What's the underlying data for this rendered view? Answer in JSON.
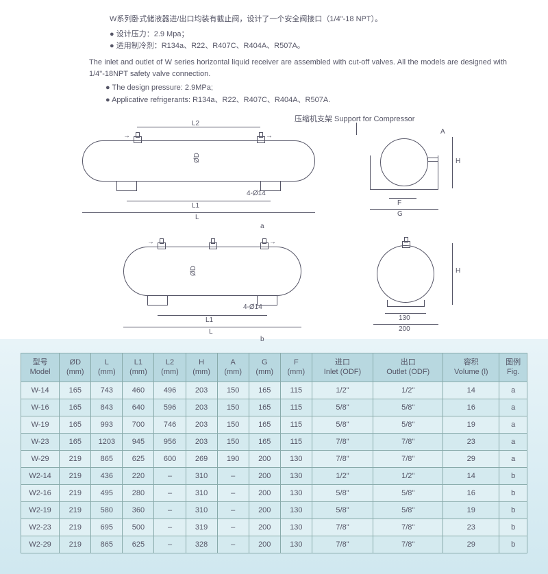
{
  "desc_cn": "W系列卧式储液器进/出口均装有截止阀，设计了一个安全阀接口（1/4\"-18 NPT）。",
  "bullets_cn": [
    "设计压力：2.9 Mpa；",
    "适用制冷剂：R134a、R22、R407C、R404A、R507A。"
  ],
  "desc_en": "The inlet and outlet of W series horizontal liquid receiver are assembled with cut-off valves. All the models are designed with 1/4\"-18NPT safety valve connection.",
  "bullets_en": [
    "The design pressure: 2.9MPa;",
    "Applicative refrigerants: R134a、R22、R407C、R404A、R507A."
  ],
  "diagram": {
    "support_label": "压缩机支架 Support for Compressor",
    "dims": {
      "L": "L",
      "L1": "L1",
      "L2": "L2",
      "OD": "ØD",
      "H": "H",
      "A": "A",
      "G": "G",
      "F": "F",
      "holes": "4-Ø14",
      "a": "a",
      "b": "b",
      "d130": "130",
      "d200": "200"
    },
    "colors": {
      "line": "#556677",
      "bg": "#ffffff"
    }
  },
  "table": {
    "columns": [
      {
        "cn": "型号",
        "en": "Model"
      },
      {
        "cn": "ØD",
        "en": "(mm)"
      },
      {
        "cn": "L",
        "en": "(mm)"
      },
      {
        "cn": "L1",
        "en": "(mm)"
      },
      {
        "cn": "L2",
        "en": "(mm)"
      },
      {
        "cn": "H",
        "en": "(mm)"
      },
      {
        "cn": "A",
        "en": "(mm)"
      },
      {
        "cn": "G",
        "en": "(mm)"
      },
      {
        "cn": "F",
        "en": "(mm)"
      },
      {
        "cn": "进口",
        "en": "Inlet (ODF)"
      },
      {
        "cn": "出口",
        "en": "Outlet (ODF)"
      },
      {
        "cn": "容积",
        "en": "Volume (l)"
      },
      {
        "cn": "图例",
        "en": "Fig."
      }
    ],
    "rows": [
      [
        "W-14",
        "165",
        "743",
        "460",
        "496",
        "203",
        "150",
        "165",
        "115",
        "1/2\"",
        "1/2\"",
        "14",
        "a"
      ],
      [
        "W-16",
        "165",
        "843",
        "640",
        "596",
        "203",
        "150",
        "165",
        "115",
        "5/8\"",
        "5/8\"",
        "16",
        "a"
      ],
      [
        "W-19",
        "165",
        "993",
        "700",
        "746",
        "203",
        "150",
        "165",
        "115",
        "5/8\"",
        "5/8\"",
        "19",
        "a"
      ],
      [
        "W-23",
        "165",
        "1203",
        "945",
        "956",
        "203",
        "150",
        "165",
        "115",
        "7/8\"",
        "7/8\"",
        "23",
        "a"
      ],
      [
        "W-29",
        "219",
        "865",
        "625",
        "600",
        "269",
        "190",
        "200",
        "130",
        "7/8\"",
        "7/8\"",
        "29",
        "a"
      ],
      [
        "W2-14",
        "219",
        "436",
        "220",
        "–",
        "310",
        "–",
        "200",
        "130",
        "1/2\"",
        "1/2\"",
        "14",
        "b"
      ],
      [
        "W2-16",
        "219",
        "495",
        "280",
        "–",
        "310",
        "–",
        "200",
        "130",
        "5/8\"",
        "5/8\"",
        "16",
        "b"
      ],
      [
        "W2-19",
        "219",
        "580",
        "360",
        "–",
        "310",
        "–",
        "200",
        "130",
        "5/8\"",
        "5/8\"",
        "19",
        "b"
      ],
      [
        "W2-23",
        "219",
        "695",
        "500",
        "–",
        "319",
        "–",
        "200",
        "130",
        "7/8\"",
        "7/8\"",
        "23",
        "b"
      ],
      [
        "W2-29",
        "219",
        "865",
        "625",
        "–",
        "328",
        "–",
        "200",
        "130",
        "7/8\"",
        "7/8\"",
        "29",
        "b"
      ]
    ]
  }
}
